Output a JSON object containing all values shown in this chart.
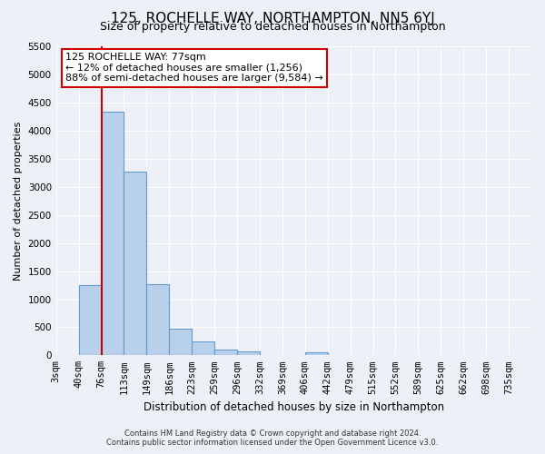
{
  "title": "125, ROCHELLE WAY, NORTHAMPTON, NN5 6YJ",
  "subtitle": "Size of property relative to detached houses in Northampton",
  "xlabel": "Distribution of detached houses by size in Northampton",
  "ylabel": "Number of detached properties",
  "bin_labels": [
    "3sqm",
    "40sqm",
    "76sqm",
    "113sqm",
    "149sqm",
    "186sqm",
    "223sqm",
    "259sqm",
    "296sqm",
    "332sqm",
    "369sqm",
    "406sqm",
    "442sqm",
    "479sqm",
    "515sqm",
    "552sqm",
    "589sqm",
    "625sqm",
    "662sqm",
    "698sqm",
    "735sqm"
  ],
  "bar_heights": [
    0,
    1250,
    4350,
    3280,
    1270,
    480,
    240,
    100,
    70,
    0,
    0,
    60,
    0,
    0,
    0,
    0,
    0,
    0,
    0,
    0,
    0
  ],
  "bar_color": "#b8d0ea",
  "bar_edge_color": "#6699cc",
  "vline_color": "#cc0000",
  "vline_x_idx": 2,
  "annotation_text_line1": "125 ROCHELLE WAY: 77sqm",
  "annotation_text_line2": "← 12% of detached houses are smaller (1,256)",
  "annotation_text_line3": "88% of semi-detached houses are larger (9,584) →",
  "ylim": [
    0,
    5500
  ],
  "yticks": [
    0,
    500,
    1000,
    1500,
    2000,
    2500,
    3000,
    3500,
    4000,
    4500,
    5000,
    5500
  ],
  "footer_line1": "Contains HM Land Registry data © Crown copyright and database right 2024.",
  "footer_line2": "Contains public sector information licensed under the Open Government Licence v3.0.",
  "bg_color": "#edf1f7",
  "plot_bg_color": "#edf1f7",
  "grid_color": "#ffffff",
  "title_fontsize": 11,
  "subtitle_fontsize": 9,
  "xlabel_fontsize": 8.5,
  "ylabel_fontsize": 8,
  "tick_fontsize": 7.5,
  "annotation_fontsize": 8
}
